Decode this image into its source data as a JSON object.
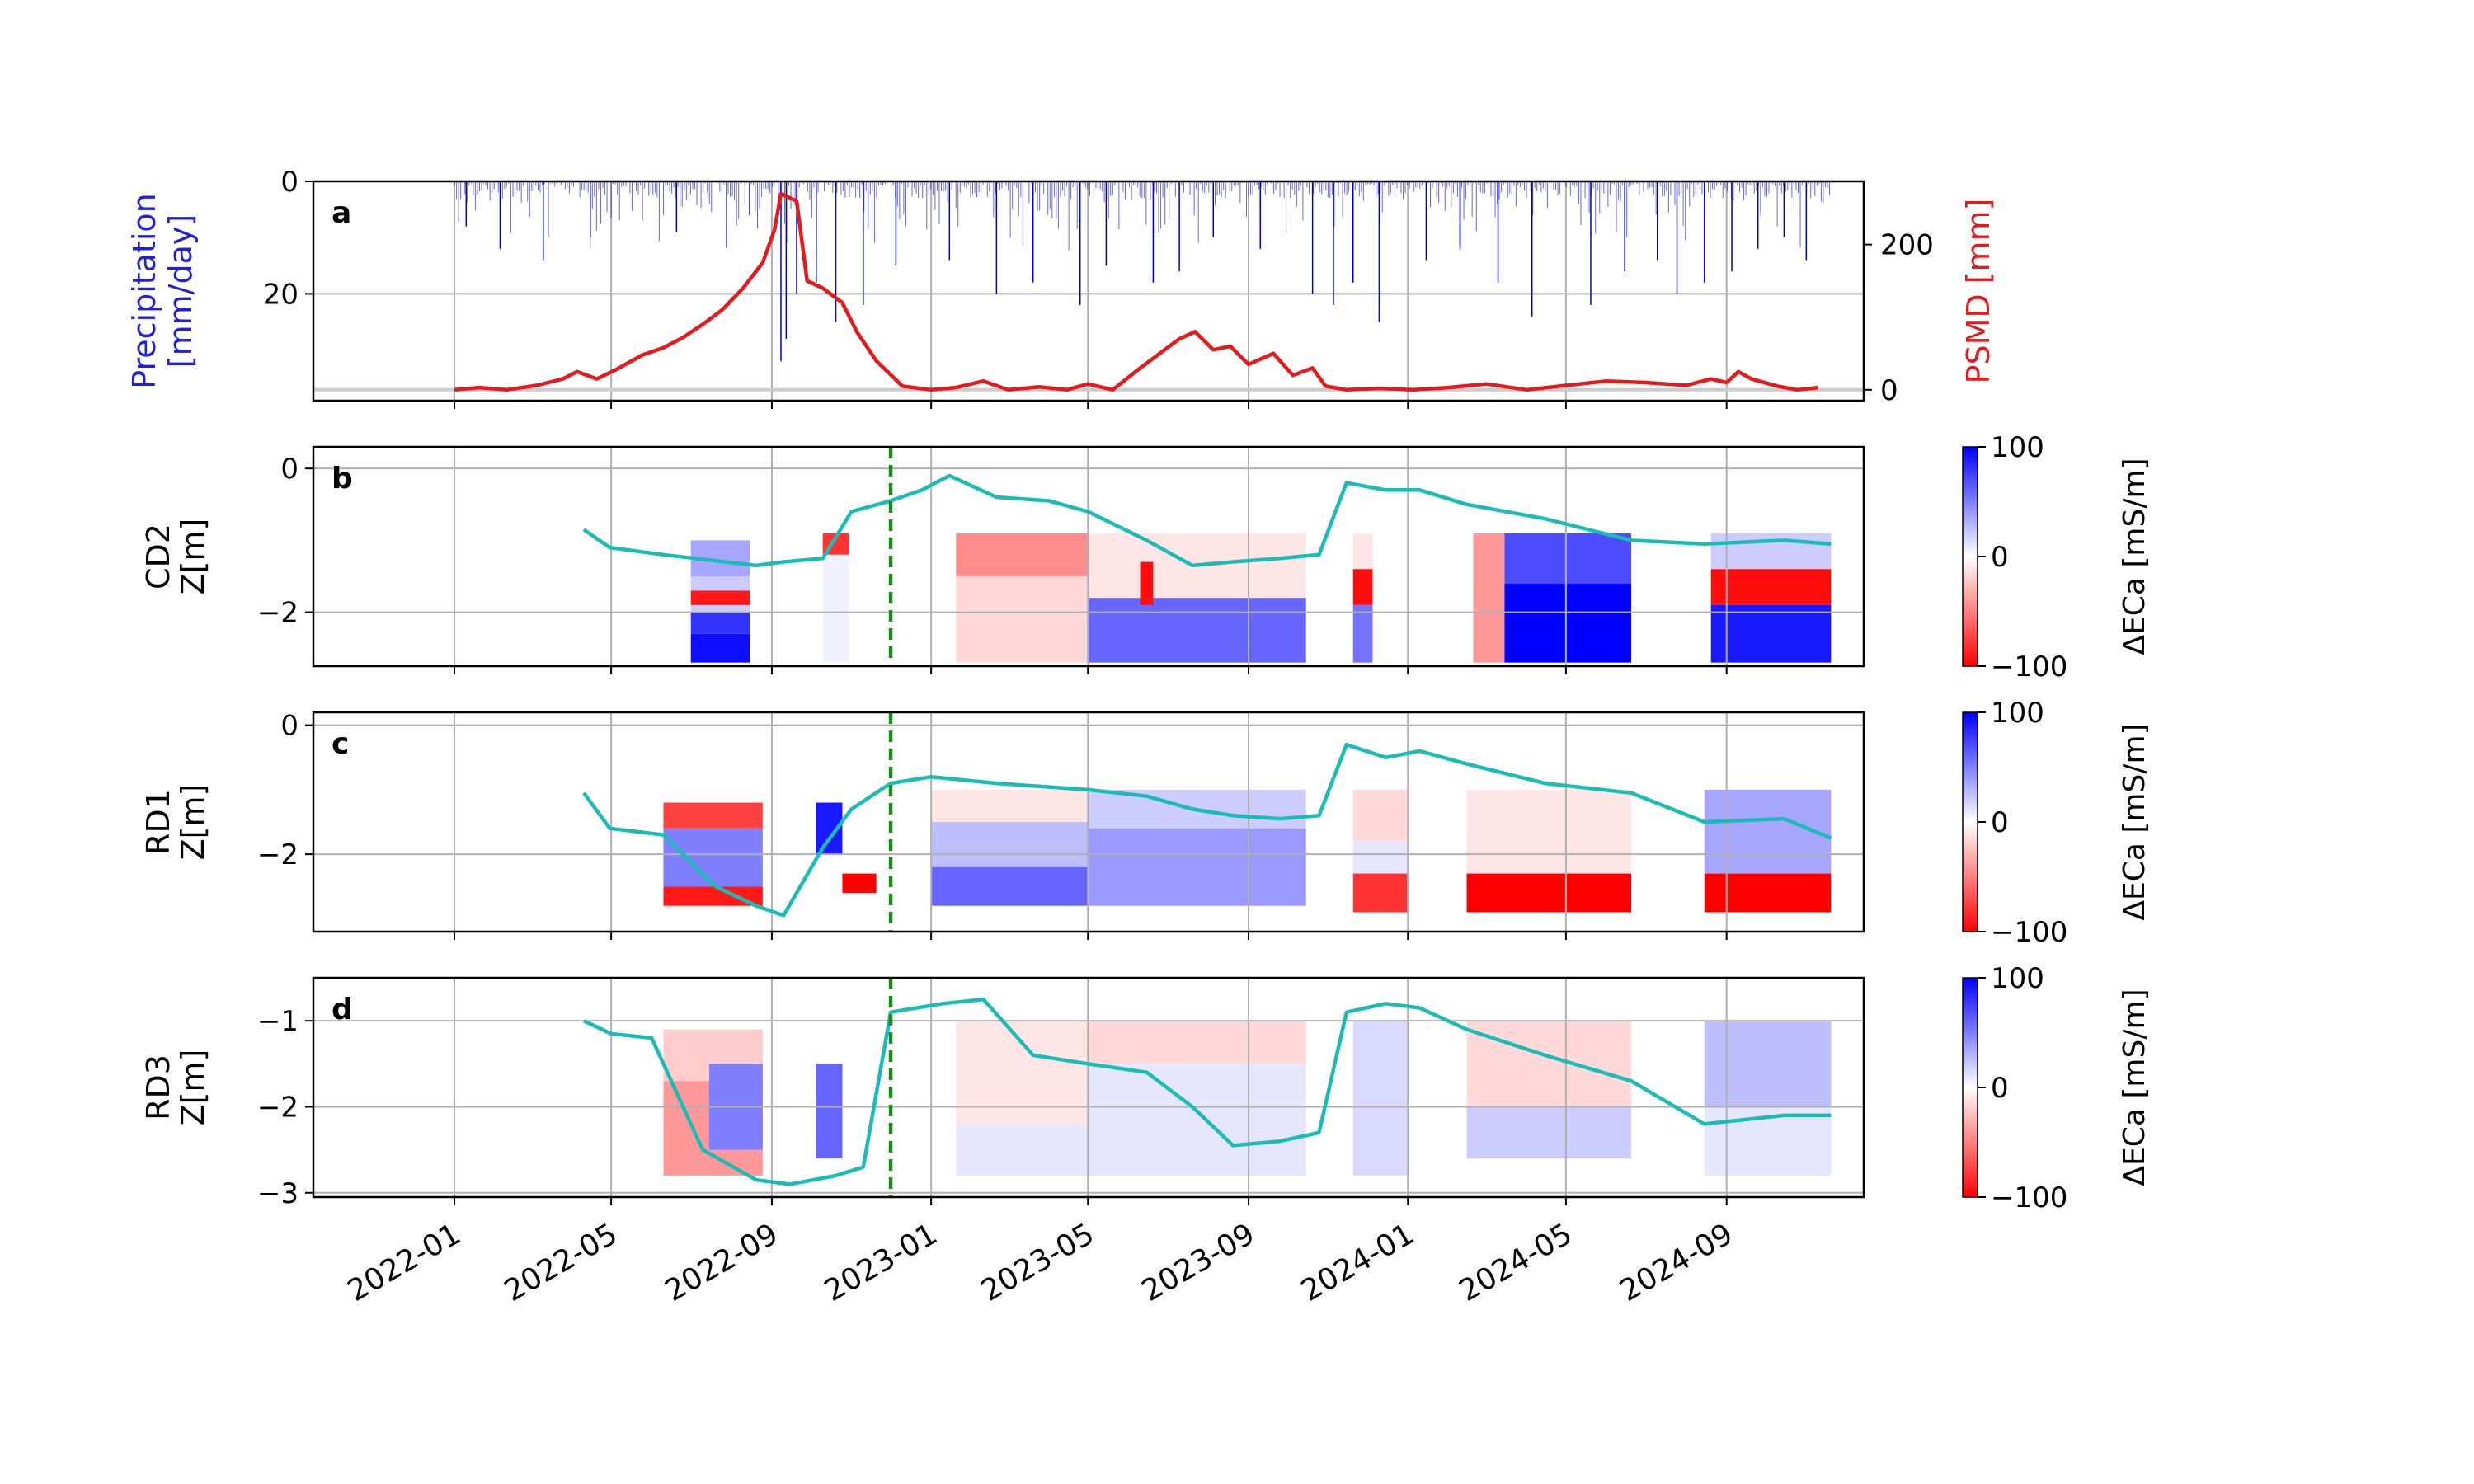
{
  "figure": {
    "x_ticks": [
      "2022-01",
      "2022-05",
      "2022-09",
      "2023-01",
      "2023-05",
      "2023-09",
      "2024-01",
      "2024-05",
      "2024-09"
    ],
    "marker_date": "2022-12-01"
  },
  "chart_data": [
    {
      "panel": "a",
      "type": "bar+line",
      "ylabel_left": [
        "Precipitation",
        "[mm/day]"
      ],
      "ylabel_right": "PSMD [mm]",
      "left_yticks": [
        "0",
        "20"
      ],
      "right_yticks": [
        "200",
        "0"
      ],
      "ylim_left": [
        39,
        0
      ],
      "ylim_right": [
        -15,
        287
      ],
      "colors": {
        "precipitation": "#0000cc",
        "psmd": "#e41a1c",
        "zero_line": "#cccccc"
      },
      "psmd": {
        "x": [
          "2022-01-01",
          "2022-01-20",
          "2022-02-10",
          "2022-03-05",
          "2022-03-25",
          "2022-04-05",
          "2022-04-20",
          "2022-05-05",
          "2022-05-25",
          "2022-06-10",
          "2022-06-25",
          "2022-07-10",
          "2022-07-25",
          "2022-08-10",
          "2022-08-25",
          "2022-09-03",
          "2022-09-08",
          "2022-09-20",
          "2022-09-28",
          "2022-10-10",
          "2022-10-25",
          "2022-11-05",
          "2022-11-20",
          "2022-12-10",
          "2023-01-01",
          "2023-01-20",
          "2023-02-10",
          "2023-03-01",
          "2023-03-25",
          "2023-04-15",
          "2023-05-01",
          "2023-05-20",
          "2023-06-10",
          "2023-06-25",
          "2023-07-10",
          "2023-07-22",
          "2023-08-05",
          "2023-08-18",
          "2023-09-01",
          "2023-09-20",
          "2023-10-05",
          "2023-10-20",
          "2023-10-30",
          "2023-11-15",
          "2023-12-10",
          "2024-01-05",
          "2024-02-01",
          "2024-03-01",
          "2024-04-01",
          "2024-05-01",
          "2024-06-01",
          "2024-07-01",
          "2024-08-01",
          "2024-08-20",
          "2024-09-01",
          "2024-09-10",
          "2024-09-20",
          "2024-10-10",
          "2024-10-25",
          "2024-11-10"
        ],
        "y": [
          0,
          3,
          0,
          6,
          15,
          25,
          15,
          28,
          48,
          58,
          72,
          90,
          110,
          140,
          175,
          220,
          270,
          260,
          150,
          140,
          120,
          80,
          40,
          5,
          0,
          3,
          12,
          0,
          4,
          0,
          8,
          0,
          30,
          50,
          70,
          80,
          55,
          60,
          35,
          50,
          20,
          30,
          5,
          0,
          2,
          0,
          3,
          8,
          0,
          6,
          12,
          10,
          6,
          15,
          10,
          25,
          15,
          5,
          0,
          3
        ]
      },
      "precipitation": {
        "x": [
          "2022-01-10",
          "2022-02-05",
          "2022-03-10",
          "2022-04-15",
          "2022-06-20",
          "2022-08-15",
          "2022-09-08",
          "2022-09-12",
          "2022-09-20",
          "2022-10-05",
          "2022-10-20",
          "2022-11-10",
          "2022-12-05",
          "2023-01-15",
          "2023-02-20",
          "2023-03-20",
          "2023-04-25",
          "2023-05-15",
          "2023-06-20",
          "2023-07-10",
          "2023-08-05",
          "2023-09-10",
          "2023-10-20",
          "2023-11-05",
          "2023-11-20",
          "2023-12-10",
          "2024-01-15",
          "2024-02-10",
          "2024-03-10",
          "2024-04-05",
          "2024-05-20",
          "2024-06-15",
          "2024-07-10",
          "2024-07-25",
          "2024-08-15",
          "2024-09-05",
          "2024-09-25",
          "2024-10-15",
          "2024-11-01"
        ],
        "y": [
          8,
          12,
          14,
          10,
          9,
          6,
          32,
          28,
          20,
          18,
          25,
          22,
          15,
          14,
          20,
          18,
          22,
          15,
          18,
          16,
          10,
          12,
          20,
          22,
          18,
          25,
          14,
          12,
          18,
          24,
          22,
          16,
          14,
          20,
          18,
          16,
          12,
          10,
          14
        ]
      }
    },
    {
      "panel": "b",
      "type": "heatmap+line",
      "ylabel": [
        "CD2",
        "Z[m]"
      ],
      "yticks": [
        "0",
        "−2"
      ],
      "ylim": [
        -2.75,
        0.3
      ],
      "colorbar": {
        "label": "ΔECa [mS/m]",
        "ticks": [
          "100",
          "0",
          "−100"
        ],
        "range": [
          -100,
          100
        ]
      },
      "heatmap_cells": [
        [
          "2022-07-01",
          "2022-08-15",
          -1.0,
          -1.5,
          35
        ],
        [
          "2022-07-01",
          "2022-08-15",
          -1.5,
          -2.0,
          20
        ],
        [
          "2022-07-01",
          "2022-08-15",
          -2.0,
          -2.3,
          80
        ],
        [
          "2022-07-01",
          "2022-08-15",
          -2.3,
          -2.7,
          95
        ],
        [
          "2022-07-01",
          "2022-08-15",
          -1.7,
          -1.9,
          -90
        ],
        [
          "2022-10-10",
          "2022-10-30",
          -0.9,
          -1.2,
          -80
        ],
        [
          "2022-10-10",
          "2022-10-30",
          -1.2,
          -2.7,
          5
        ],
        [
          "2023-01-20",
          "2023-05-01",
          -0.9,
          -1.5,
          -45
        ],
        [
          "2023-01-20",
          "2023-05-01",
          -1.5,
          -2.7,
          -15
        ],
        [
          "2023-05-01",
          "2023-10-15",
          -0.9,
          -1.8,
          -10
        ],
        [
          "2023-05-01",
          "2023-10-15",
          -1.8,
          -2.7,
          60
        ],
        [
          "2023-06-10",
          "2023-06-20",
          -1.3,
          -1.9,
          -95
        ],
        [
          "2023-11-20",
          "2023-12-05",
          -0.9,
          -1.4,
          -10
        ],
        [
          "2023-11-20",
          "2023-12-05",
          -1.4,
          -1.9,
          -95
        ],
        [
          "2023-11-20",
          "2023-12-05",
          -1.9,
          -2.7,
          55
        ],
        [
          "2024-02-20",
          "2024-03-15",
          -0.9,
          -2.7,
          -40
        ],
        [
          "2024-03-15",
          "2024-06-20",
          -0.9,
          -1.6,
          70
        ],
        [
          "2024-03-15",
          "2024-06-20",
          -1.6,
          -2.7,
          100
        ],
        [
          "2024-08-20",
          "2024-11-20",
          -0.9,
          -1.4,
          20
        ],
        [
          "2024-08-20",
          "2024-11-20",
          -1.4,
          -1.9,
          -95
        ],
        [
          "2024-08-20",
          "2024-11-20",
          -1.9,
          -2.7,
          90
        ]
      ],
      "water_table": {
        "x": [
          "2022-04-10",
          "2022-04-30",
          "2022-06-10",
          "2022-08-20",
          "2022-09-10",
          "2022-10-10",
          "2022-11-01",
          "2022-12-01",
          "2022-12-25",
          "2023-01-15",
          "2023-02-20",
          "2023-04-01",
          "2023-05-01",
          "2023-06-15",
          "2023-07-20",
          "2023-08-20",
          "2023-09-25",
          "2023-10-25",
          "2023-11-15",
          "2023-12-15",
          "2024-01-10",
          "2024-02-15",
          "2024-04-15",
          "2024-06-20",
          "2024-08-15",
          "2024-10-15",
          "2024-11-20"
        ],
        "y": [
          -0.85,
          -1.1,
          -1.2,
          -1.35,
          -1.3,
          -1.25,
          -0.6,
          -0.45,
          -0.3,
          -0.1,
          -0.4,
          -0.45,
          -0.6,
          -1.0,
          -1.35,
          -1.3,
          -1.25,
          -1.2,
          -0.2,
          -0.3,
          -0.3,
          -0.5,
          -0.7,
          -1.0,
          -1.05,
          -1.0,
          -1.05
        ]
      }
    },
    {
      "panel": "c",
      "type": "heatmap+line",
      "ylabel": [
        "RD1",
        "Z[m]"
      ],
      "yticks": [
        "0",
        "−2"
      ],
      "ylim": [
        -3.2,
        0.2
      ],
      "colorbar": {
        "label": "ΔECa [mS/m]",
        "ticks": [
          "100",
          "0",
          "−100"
        ],
        "range": [
          -100,
          100
        ]
      },
      "heatmap_cells": [
        [
          "2022-06-10",
          "2022-08-25",
          -1.2,
          -1.6,
          -75
        ],
        [
          "2022-06-10",
          "2022-08-25",
          -1.6,
          -2.5,
          50
        ],
        [
          "2022-06-10",
          "2022-08-25",
          -2.5,
          -2.8,
          -90
        ],
        [
          "2022-10-05",
          "2022-10-25",
          -1.2,
          -2.0,
          90
        ],
        [
          "2022-10-25",
          "2022-11-20",
          -2.3,
          -2.6,
          -100
        ],
        [
          "2023-01-01",
          "2023-05-01",
          -1.0,
          -1.5,
          -10
        ],
        [
          "2023-01-01",
          "2023-05-01",
          -1.5,
          -2.2,
          25
        ],
        [
          "2023-01-01",
          "2023-05-01",
          -2.2,
          -2.8,
          60
        ],
        [
          "2023-05-01",
          "2023-10-15",
          -1.0,
          -1.6,
          20
        ],
        [
          "2023-05-01",
          "2023-10-15",
          -1.6,
          -2.8,
          40
        ],
        [
          "2023-11-20",
          "2024-01-01",
          -1.0,
          -1.8,
          -15
        ],
        [
          "2023-11-20",
          "2024-01-01",
          -1.8,
          -2.3,
          10
        ],
        [
          "2023-11-20",
          "2024-01-01",
          -2.3,
          -2.9,
          -80
        ],
        [
          "2024-02-15",
          "2024-06-20",
          -1.0,
          -2.3,
          -10
        ],
        [
          "2024-02-15",
          "2024-06-20",
          -2.3,
          -2.9,
          -100
        ],
        [
          "2024-08-15",
          "2024-11-20",
          -1.0,
          -2.3,
          35
        ],
        [
          "2024-08-15",
          "2024-11-20",
          -2.3,
          -2.9,
          -100
        ]
      ],
      "water_table": {
        "x": [
          "2022-04-10",
          "2022-04-30",
          "2022-06-10",
          "2022-07-20",
          "2022-08-20",
          "2022-09-10",
          "2022-10-10",
          "2022-11-01",
          "2022-12-01",
          "2023-01-01",
          "2023-02-20",
          "2023-05-01",
          "2023-06-15",
          "2023-07-20",
          "2023-08-20",
          "2023-09-25",
          "2023-10-25",
          "2023-11-15",
          "2023-12-15",
          "2024-01-10",
          "2024-02-15",
          "2024-04-15",
          "2024-06-20",
          "2024-08-15",
          "2024-10-15",
          "2024-11-20"
        ],
        "y": [
          -1.05,
          -1.6,
          -1.7,
          -2.5,
          -2.8,
          -2.95,
          -1.9,
          -1.3,
          -0.9,
          -0.8,
          -0.9,
          -1.0,
          -1.1,
          -1.3,
          -1.4,
          -1.45,
          -1.4,
          -0.3,
          -0.5,
          -0.4,
          -0.6,
          -0.9,
          -1.05,
          -1.5,
          -1.45,
          -1.75
        ]
      }
    },
    {
      "panel": "d",
      "type": "heatmap+line",
      "ylabel": [
        "RD3",
        "Z[m]"
      ],
      "yticks": [
        "−1",
        "−2",
        "−3"
      ],
      "ylim": [
        -3.05,
        -0.5
      ],
      "colorbar": {
        "label": "ΔECa [mS/m]",
        "ticks": [
          "100",
          "0",
          "−100"
        ],
        "range": [
          -100,
          100
        ]
      },
      "heatmap_cells": [
        [
          "2022-06-10",
          "2022-08-25",
          -1.1,
          -1.7,
          -20
        ],
        [
          "2022-06-10",
          "2022-08-25",
          -1.7,
          -2.8,
          -40
        ],
        [
          "2022-07-15",
          "2022-08-25",
          -1.5,
          -2.5,
          50
        ],
        [
          "2022-10-05",
          "2022-10-25",
          -1.5,
          -2.6,
          60
        ],
        [
          "2023-01-20",
          "2023-05-01",
          -1.0,
          -2.2,
          -10
        ],
        [
          "2023-01-20",
          "2023-05-01",
          -2.2,
          -2.8,
          10
        ],
        [
          "2023-05-01",
          "2023-10-15",
          -1.0,
          -1.5,
          -15
        ],
        [
          "2023-05-01",
          "2023-10-15",
          -1.5,
          -2.8,
          10
        ],
        [
          "2023-11-20",
          "2024-01-01",
          -1.0,
          -2.8,
          15
        ],
        [
          "2024-02-15",
          "2024-06-20",
          -1.0,
          -2.0,
          -15
        ],
        [
          "2024-02-15",
          "2024-06-20",
          -2.0,
          -2.6,
          20
        ],
        [
          "2024-08-15",
          "2024-11-20",
          -1.0,
          -2.0,
          25
        ],
        [
          "2024-08-15",
          "2024-11-20",
          -2.0,
          -2.8,
          10
        ]
      ],
      "water_table": {
        "x": [
          "2022-04-10",
          "2022-05-01",
          "2022-06-01",
          "2022-07-10",
          "2022-08-20",
          "2022-09-15",
          "2022-10-20",
          "2022-11-10",
          "2022-12-01",
          "2023-01-10",
          "2023-02-10",
          "2023-03-20",
          "2023-05-01",
          "2023-06-15",
          "2023-07-20",
          "2023-08-20",
          "2023-09-25",
          "2023-10-25",
          "2023-11-15",
          "2023-12-15",
          "2024-01-10",
          "2024-02-15",
          "2024-04-15",
          "2024-06-20",
          "2024-08-15",
          "2024-10-15",
          "2024-11-20"
        ],
        "y": [
          -1.0,
          -1.15,
          -1.2,
          -2.5,
          -2.85,
          -2.9,
          -2.8,
          -2.7,
          -0.9,
          -0.8,
          -0.75,
          -1.4,
          -1.5,
          -1.6,
          -2.0,
          -2.45,
          -2.4,
          -2.3,
          -0.9,
          -0.8,
          -0.85,
          -1.1,
          -1.4,
          -1.7,
          -2.2,
          -2.1,
          -2.1
        ]
      }
    }
  ]
}
